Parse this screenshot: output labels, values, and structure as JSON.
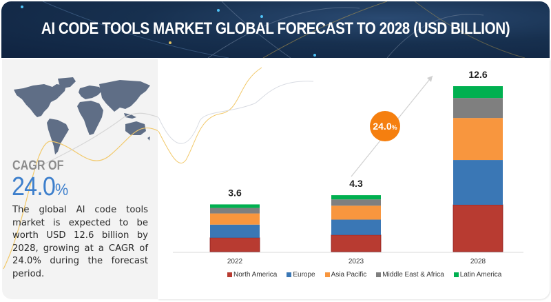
{
  "header": {
    "title": "AI CODE TOOLS MARKET GLOBAL FORECAST TO 2028 (USD BILLION)"
  },
  "left_panel": {
    "map_icon": "world-map-icon",
    "cagr_label": "CAGR OF",
    "cagr_number": "24.0",
    "cagr_percent_sign": "%",
    "description": "The global AI code tools market is expected to be worth USD 12.6 billion by 2028, growing at a CAGR of 24.0% during the forecast period."
  },
  "colors": {
    "header_bg": "#17304f",
    "accent_blue": "#3d7fcc",
    "cagr_bubble": "#f57f0f"
  },
  "chart_data": {
    "type": "bar",
    "stacked": true,
    "title": "AI CODE TOOLS MARKET GLOBAL FORECAST TO 2028 (USD BILLION)",
    "xlabel": "",
    "ylabel": "USD Billion",
    "categories": [
      "2022",
      "2023",
      "2028"
    ],
    "totals": [
      3.6,
      4.3,
      12.6
    ],
    "total_labels": [
      "3.6",
      "4.3",
      "12.6"
    ],
    "series": [
      {
        "name": "North America",
        "color": "#b83b31",
        "values": [
          1.06,
          1.27,
          3.57
        ]
      },
      {
        "name": "Europe",
        "color": "#3a77b5",
        "values": [
          1.0,
          1.17,
          3.41
        ]
      },
      {
        "name": "Asia Pacific",
        "color": "#f8963e",
        "values": [
          0.85,
          1.06,
          3.2
        ]
      },
      {
        "name": "Middle East & Africa",
        "color": "#7f7f7f",
        "values": [
          0.42,
          0.48,
          1.52
        ]
      },
      {
        "name": "Latin America",
        "color": "#00b050",
        "values": [
          0.27,
          0.32,
          0.9
        ]
      }
    ],
    "ylim": [
      0,
      13
    ],
    "grid": false,
    "legend_position": "bottom",
    "annotation": {
      "text": "24.0",
      "suffix": "%",
      "meaning": "CAGR 2023-2028"
    }
  }
}
